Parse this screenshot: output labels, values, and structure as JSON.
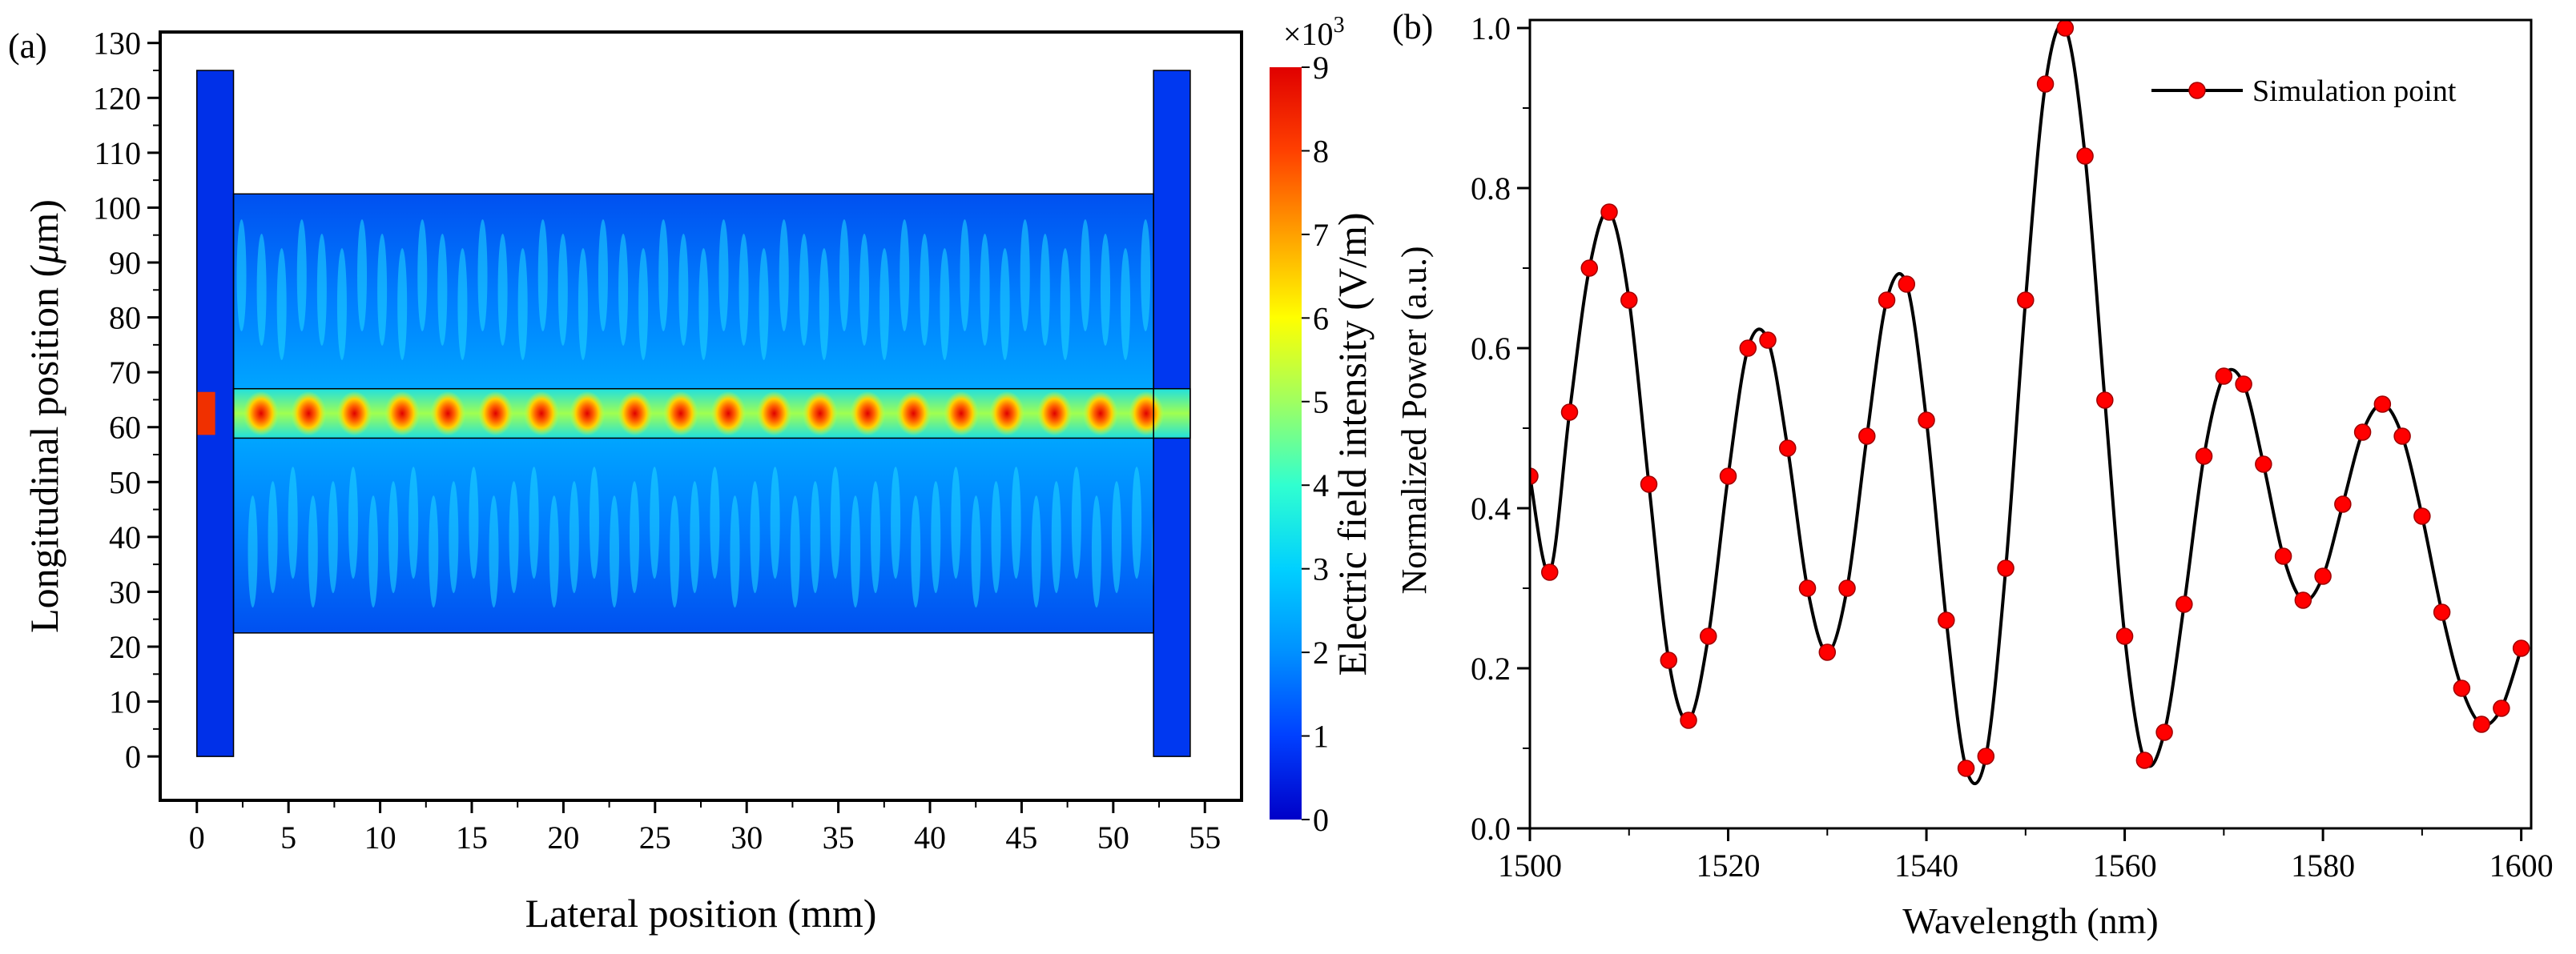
{
  "chart_data": [
    {
      "type": "heatmap",
      "panel_label": "(a)",
      "title": "",
      "xlabel": "Lateral position (mm)",
      "ylabel_text": "Longitudinal position (",
      "ylabel_mu": "μ",
      "ylabel_unit": "m)",
      "xlim": [
        -2,
        57
      ],
      "ylim": [
        -8,
        132
      ],
      "x_ticks": [
        "0",
        "5",
        "10",
        "15",
        "20",
        "25",
        "30",
        "35",
        "40",
        "45",
        "50",
        "55"
      ],
      "y_ticks": [
        "0",
        "10",
        "20",
        "30",
        "40",
        "50",
        "60",
        "70",
        "80",
        "90",
        "100",
        "110",
        "120",
        "130"
      ],
      "colorbar": {
        "label": "Electric field intensity (V/m)",
        "multiplier_base": "×10",
        "multiplier_exp": "3",
        "range": [
          0,
          9
        ],
        "ticks": [
          "0",
          "1",
          "2",
          "3",
          "4",
          "5",
          "6",
          "7",
          "8",
          "9"
        ],
        "colors": [
          "#0000c8",
          "#0040ff",
          "#0090ff",
          "#00d0ff",
          "#30ffd0",
          "#a0ff60",
          "#ffff00",
          "#ffa000",
          "#ff4000",
          "#e00000"
        ]
      },
      "structure": {
        "left_bar": {
          "x": [
            0,
            2
          ],
          "y": [
            0,
            125
          ]
        },
        "right_bar": {
          "x": [
            52.2,
            54.2
          ],
          "y": [
            0,
            125
          ]
        },
        "cavity": {
          "x": [
            2,
            52.2
          ],
          "y": [
            22.5,
            102.5
          ]
        },
        "core": {
          "x": [
            2,
            54.2
          ],
          "y": [
            58,
            67
          ]
        },
        "hotspot_x": [
          3.5,
          6.1,
          8.6,
          11.2,
          13.7,
          16.3,
          18.8,
          21.3,
          23.9,
          26.4,
          29.0,
          31.5,
          34.0,
          36.6,
          39.1,
          41.7,
          44.2,
          46.8,
          49.3,
          51.8
        ]
      }
    },
    {
      "type": "line",
      "panel_label": "(b)",
      "title": "",
      "xlabel": "Wavelength (nm)",
      "ylabel": "Normalized Power (a.u.)",
      "xlim": [
        1500,
        1601
      ],
      "ylim": [
        0,
        1.01
      ],
      "x_ticks": [
        "1500",
        "1520",
        "1540",
        "1560",
        "1580",
        "1600"
      ],
      "y_ticks": [
        "0.0",
        "0.2",
        "0.4",
        "0.6",
        "0.8",
        "1.0"
      ],
      "legend": {
        "entries": [
          "Simulation point"
        ],
        "position": "top-right"
      },
      "series": [
        {
          "name": "Simulation point",
          "color": "#ff0000",
          "x": [
            1500,
            1502,
            1504,
            1506,
            1508,
            1510,
            1512,
            1514,
            1516,
            1518,
            1520,
            1522,
            1524,
            1526,
            1528,
            1530,
            1532,
            1534,
            1536,
            1538,
            1540,
            1542,
            1544,
            1546,
            1548,
            1550,
            1552,
            1554,
            1556,
            1558,
            1560,
            1562,
            1564,
            1566,
            1568,
            1570,
            1572,
            1574,
            1576,
            1578,
            1580,
            1582,
            1584,
            1586,
            1588,
            1590,
            1592,
            1594,
            1596,
            1598,
            1600
          ],
          "y": [
            0.44,
            0.32,
            0.52,
            0.7,
            0.77,
            0.66,
            0.43,
            0.21,
            0.135,
            0.24,
            0.44,
            0.6,
            0.61,
            0.475,
            0.3,
            0.22,
            0.3,
            0.49,
            0.66,
            0.68,
            0.51,
            0.26,
            0.075,
            0.09,
            0.325,
            0.66,
            0.93,
            1.0,
            0.84,
            0.535,
            0.24,
            0.085,
            0.12,
            0.28,
            0.465,
            0.565,
            0.555,
            0.455,
            0.34,
            0.285,
            0.315,
            0.405,
            0.495,
            0.53,
            0.49,
            0.39,
            0.27,
            0.175,
            0.13,
            0.15,
            0.225
          ]
        }
      ]
    }
  ]
}
